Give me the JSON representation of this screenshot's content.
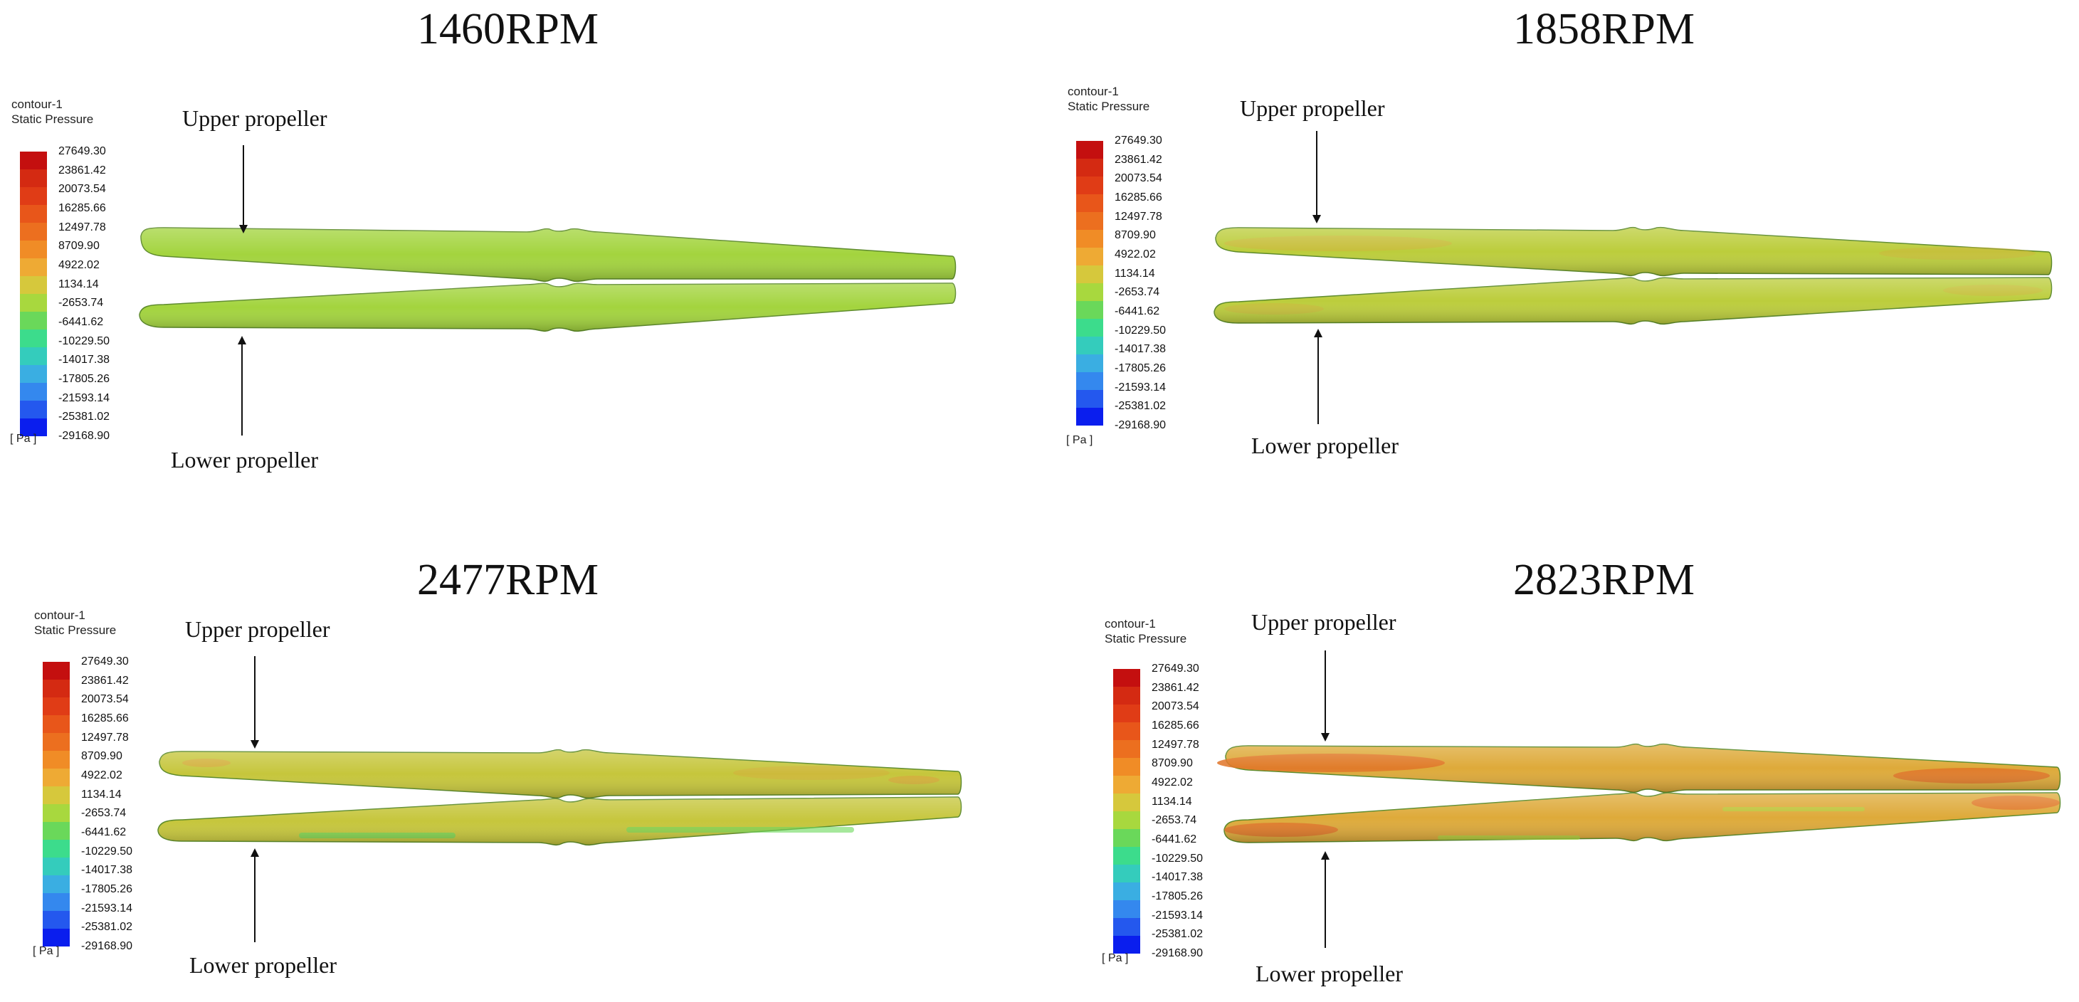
{
  "legend": {
    "title": "contour-1",
    "variable": "Static Pressure",
    "unit": "[ Pa ]",
    "ticks": [
      "27649.30",
      "23861.42",
      "20073.54",
      "16285.66",
      "12497.78",
      "8709.90",
      "4922.02",
      "1134.14",
      "-2653.74",
      "-6441.62",
      "-10229.50",
      "-14017.38",
      "-17805.26",
      "-21593.14",
      "-25381.02",
      "-29168.90"
    ],
    "colors": [
      "#c40f0f",
      "#d42a12",
      "#e03c16",
      "#e8561a",
      "#ec6f1f",
      "#f08c26",
      "#eeaa34",
      "#d6c83c",
      "#a8d83e",
      "#6ad85a",
      "#3cdc8c",
      "#34ccbc",
      "#3aaee2",
      "#3488ee",
      "#2458ee",
      "#0a1eee"
    ]
  },
  "labels": {
    "upper": "Upper propeller",
    "lower": "Lower propeller"
  },
  "panels": [
    {
      "id": "p1460",
      "title": "1460RPM",
      "surface_color": "#a3d43e",
      "hot_color": "#bccd3c"
    },
    {
      "id": "p1858",
      "title": "1858RPM",
      "surface_color": "#bccd3c",
      "hot_color": "#d0b43a"
    },
    {
      "id": "p2477",
      "title": "2477RPM",
      "surface_color": "#c6c63c",
      "hot_color": "#dba33a"
    },
    {
      "id": "p2823",
      "title": "2823RPM",
      "surface_color": "#deaa3a",
      "hot_color": "#e07428"
    }
  ]
}
